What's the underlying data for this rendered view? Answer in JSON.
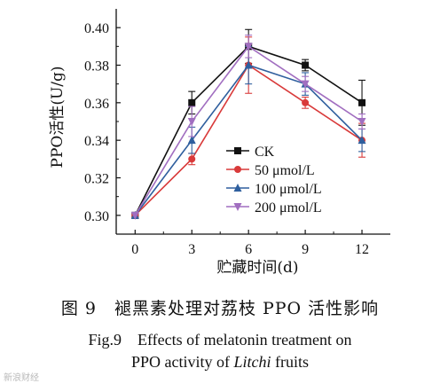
{
  "chart_data": {
    "type": "line",
    "xlabel": "贮藏时间(d)",
    "ylabel": "PPO活性(U/g)",
    "x": [
      0,
      3,
      6,
      9,
      12
    ],
    "xticks": [
      "0",
      "3",
      "6",
      "9",
      "12"
    ],
    "yticks": [
      "0.30",
      "0.32",
      "0.34",
      "0.36",
      "0.38",
      "0.40"
    ],
    "xlim": [
      -1,
      13.5
    ],
    "ylim": [
      0.29,
      0.41
    ],
    "grid": false,
    "legend_position": "right-middle",
    "series": [
      {
        "name": "CK",
        "color": "#111111",
        "marker": "square",
        "values": [
          0.3,
          0.36,
          0.39,
          0.38,
          0.36
        ],
        "errors": [
          0,
          0.006,
          0.009,
          0.003,
          0.012
        ]
      },
      {
        "name": "50 μmol/L",
        "color": "#d93a3a",
        "marker": "circle",
        "values": [
          0.3,
          0.33,
          0.38,
          0.36,
          0.34
        ],
        "errors": [
          0,
          0.003,
          0.015,
          0.003,
          0.009
        ]
      },
      {
        "name": "100 μmol/L",
        "color": "#2f5f9e",
        "marker": "triangle-up",
        "values": [
          0.3,
          0.34,
          0.38,
          0.37,
          0.34
        ],
        "errors": [
          0,
          0.007,
          0.01,
          0.006,
          0.006
        ]
      },
      {
        "name": "200 μmol/L",
        "color": "#a16ec0",
        "marker": "triangle-down",
        "values": [
          0.3,
          0.35,
          0.39,
          0.37,
          0.35
        ],
        "errors": [
          0,
          0.008,
          0.006,
          0.004,
          0.004
        ]
      }
    ]
  },
  "caption": {
    "cn": "图 9　褪黑素处理对荔枝 PPO 活性影响",
    "en_line1": "Fig.9　Effects of melatonin treatment on",
    "en_line2": "PPO activity of Litchi fruits"
  },
  "watermark": "新浪财经"
}
